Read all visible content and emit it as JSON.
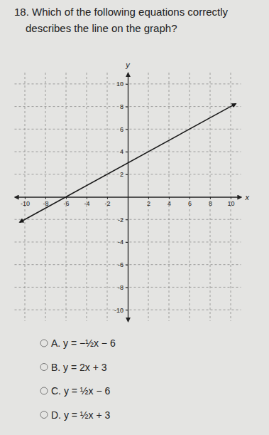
{
  "question": {
    "lines": [
      "18. Which of the following equations correctly",
      "describes the line on the graph?"
    ]
  },
  "choices": [
    "A. y = −½x − 6",
    "B. y = 2x + 3",
    "C. y = ½x − 6",
    "D. y = ½x + 3"
  ],
  "chart_data": {
    "type": "line",
    "x_label": "x",
    "y_label": "y",
    "xlim": [
      -11,
      11
    ],
    "ylim": [
      -11,
      11
    ],
    "xticks": [
      -10,
      -8,
      -6,
      -4,
      -2,
      2,
      4,
      6,
      8,
      10
    ],
    "yticks": [
      -10,
      -8,
      -6,
      -4,
      -2,
      2,
      4,
      6,
      8,
      10
    ],
    "grid": true,
    "x": [
      -10.5,
      10.5
    ],
    "series": [
      {
        "values": [
          -2.25,
          8.25
        ],
        "color": "#1a1a1a",
        "marker": "arrow"
      }
    ]
  }
}
